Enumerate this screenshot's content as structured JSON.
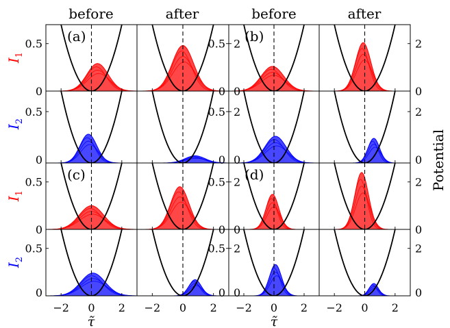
{
  "figure": {
    "column_titles": [
      "before",
      "after",
      "before",
      "after"
    ],
    "row_labels": [
      {
        "main": "I",
        "sub": "1",
        "color": "#ff0000"
      },
      {
        "main": "I",
        "sub": "2",
        "color": "#0000ff"
      },
      {
        "main": "I",
        "sub": "1",
        "color": "#ff0000"
      },
      {
        "main": "I",
        "sub": "2",
        "color": "#0000ff"
      }
    ],
    "xlabel": "τ̃",
    "right_label": "Potential",
    "left_ticks": [
      "0.5",
      "0"
    ],
    "right_ticks": [
      "2",
      "0"
    ],
    "x_ticks": [
      "−2",
      "0",
      "2"
    ],
    "panel_labels": [
      "(a)",
      "(b)",
      "(c)",
      "(d)"
    ]
  },
  "chart_data": {
    "type": "area",
    "xlim": [
      -3,
      3
    ],
    "ylim_intensity": [
      0,
      0.7
    ],
    "ylim_potential": [
      0,
      2.8
    ],
    "potential_curve": {
      "form": "parabola",
      "value_at_x0": 0,
      "value_at_x_plus_minus_2": 2.8,
      "color": "#000000"
    },
    "center_line": {
      "x": 0,
      "style": "dashed"
    },
    "colors": {
      "I1": "#ff0000",
      "I2": "#0000ff"
    },
    "groups": [
      {
        "label": "(a)",
        "position": "top-left",
        "I1": {
          "before": {
            "peak": 0.29,
            "center": 0.4,
            "width": 0.7
          },
          "after": {
            "peak": 0.48,
            "center": 0.0,
            "width": 0.7
          }
        },
        "I2": {
          "before": {
            "peak": 0.28,
            "center": -0.2,
            "width": 0.55
          },
          "after": {
            "peak": 0.07,
            "center": 0.8,
            "width": 0.65
          }
        }
      },
      {
        "label": "(b)",
        "position": "top-right",
        "I1": {
          "before": {
            "peak": 0.26,
            "center": -0.1,
            "width": 0.75
          },
          "after": {
            "peak": 0.51,
            "center": -0.1,
            "width": 0.5
          }
        },
        "I2": {
          "before": {
            "peak": 0.26,
            "center": 0.1,
            "width": 0.7
          },
          "after": {
            "peak": 0.24,
            "center": 0.6,
            "width": 0.38
          }
        }
      },
      {
        "label": "(c)",
        "position": "bottom-left",
        "I1": {
          "before": {
            "peak": 0.25,
            "center": 0.0,
            "width": 0.8
          },
          "after": {
            "peak": 0.45,
            "center": -0.2,
            "width": 0.6
          }
        },
        "I2": {
          "before": {
            "peak": 0.24,
            "center": 0.1,
            "width": 0.8
          },
          "after": {
            "peak": 0.17,
            "center": 0.8,
            "width": 0.4
          }
        }
      },
      {
        "label": "(d)",
        "position": "bottom-right",
        "I1": {
          "before": {
            "peak": 0.37,
            "center": -0.1,
            "width": 0.42
          },
          "after": {
            "peak": 0.6,
            "center": -0.2,
            "width": 0.45
          }
        },
        "I2": {
          "before": {
            "peak": 0.33,
            "center": 0.1,
            "width": 0.4
          },
          "after": {
            "peak": 0.13,
            "center": 0.6,
            "width": 0.3
          }
        }
      }
    ]
  }
}
